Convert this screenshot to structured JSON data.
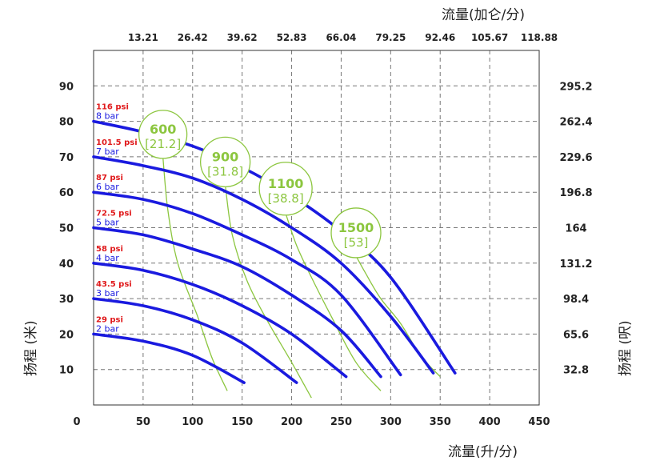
{
  "chart_data": {
    "type": "line",
    "title_top": "流量(加仑/分)",
    "title_bottom": "流量(升/分)",
    "ylabel_left": "扬程 (米)",
    "ylabel_right": "扬程 (呎)",
    "x_ticks_bottom": [
      "0",
      "50",
      "100",
      "150",
      "200",
      "250",
      "300",
      "350",
      "400",
      "450"
    ],
    "x_ticks_top": [
      "13.21",
      "26.42",
      "39.62",
      "52.83",
      "66.04",
      "79.25",
      "92.46",
      "105.67",
      "118.88"
    ],
    "y_ticks_left": [
      "10",
      "20",
      "30",
      "40",
      "50",
      "60",
      "70",
      "80",
      "90"
    ],
    "y_ticks_right": [
      "32.8",
      "65.6",
      "98.4",
      "131.2",
      "164",
      "196.8",
      "229.6",
      "262.4",
      "295.2"
    ],
    "xlim": [
      0,
      450
    ],
    "ylim": [
      0,
      100
    ],
    "grid": true,
    "colors": {
      "pressure_curve": "#1a1adf",
      "psi_label": "#e0191b",
      "bar_label": "#1a1adf",
      "air_curve": "#8cc63f"
    },
    "pressure_series": [
      {
        "psi": "29 psi",
        "bar": "2 bar",
        "x": [
          0,
          50,
          100,
          152
        ],
        "y": [
          20,
          18,
          14,
          6.3
        ]
      },
      {
        "psi": "43.5 psi",
        "bar": "3 bar",
        "x": [
          0,
          50,
          100,
          150,
          205
        ],
        "y": [
          30,
          28,
          24,
          17.5,
          6.3
        ]
      },
      {
        "psi": "58 psi",
        "bar": "4 bar",
        "x": [
          0,
          50,
          100,
          150,
          200,
          255
        ],
        "y": [
          40,
          38,
          34,
          28,
          20,
          8
        ]
      },
      {
        "psi": "72.5 psi",
        "bar": "5 bar",
        "x": [
          0,
          50,
          100,
          150,
          200,
          250,
          290
        ],
        "y": [
          50,
          48,
          44,
          39,
          31,
          21,
          8
        ]
      },
      {
        "psi": "87 psi",
        "bar": "6 bar",
        "x": [
          0,
          50,
          100,
          150,
          200,
          250,
          310
        ],
        "y": [
          60,
          58,
          54,
          48,
          41,
          31,
          8.5
        ]
      },
      {
        "psi": "101.5 psi",
        "bar": "7 bar",
        "x": [
          0,
          50,
          100,
          150,
          200,
          250,
          300,
          343
        ],
        "y": [
          70,
          67.5,
          64,
          58,
          50,
          40,
          25,
          9
        ]
      },
      {
        "psi": "116 psi",
        "bar": "8 bar",
        "x": [
          0,
          50,
          100,
          150,
          200,
          250,
          300,
          365
        ],
        "y": [
          80,
          77,
          73,
          67,
          59,
          49,
          36,
          9
        ]
      }
    ],
    "air_series": [
      {
        "label": "600",
        "sublabel": "[21.2]",
        "x": [
          70,
          75,
          85,
          105,
          120,
          135
        ],
        "y": [
          70,
          55,
          40,
          25,
          13,
          4
        ]
      },
      {
        "label": "900",
        "sublabel": "[31.8]",
        "x": [
          133,
          140,
          155,
          175,
          200,
          220
        ],
        "y": [
          62,
          48,
          35,
          24,
          12,
          2
        ]
      },
      {
        "label": "1100",
        "sublabel": "[38.8]",
        "x": [
          194,
          205,
          220,
          240,
          265,
          290
        ],
        "y": [
          54,
          45,
          36,
          25,
          12,
          4
        ]
      },
      {
        "label": "1500",
        "sublabel": "[53]",
        "x": [
          265,
          275,
          290,
          310,
          330,
          350
        ],
        "y": [
          42,
          37,
          30,
          23,
          14,
          8
        ]
      }
    ]
  }
}
